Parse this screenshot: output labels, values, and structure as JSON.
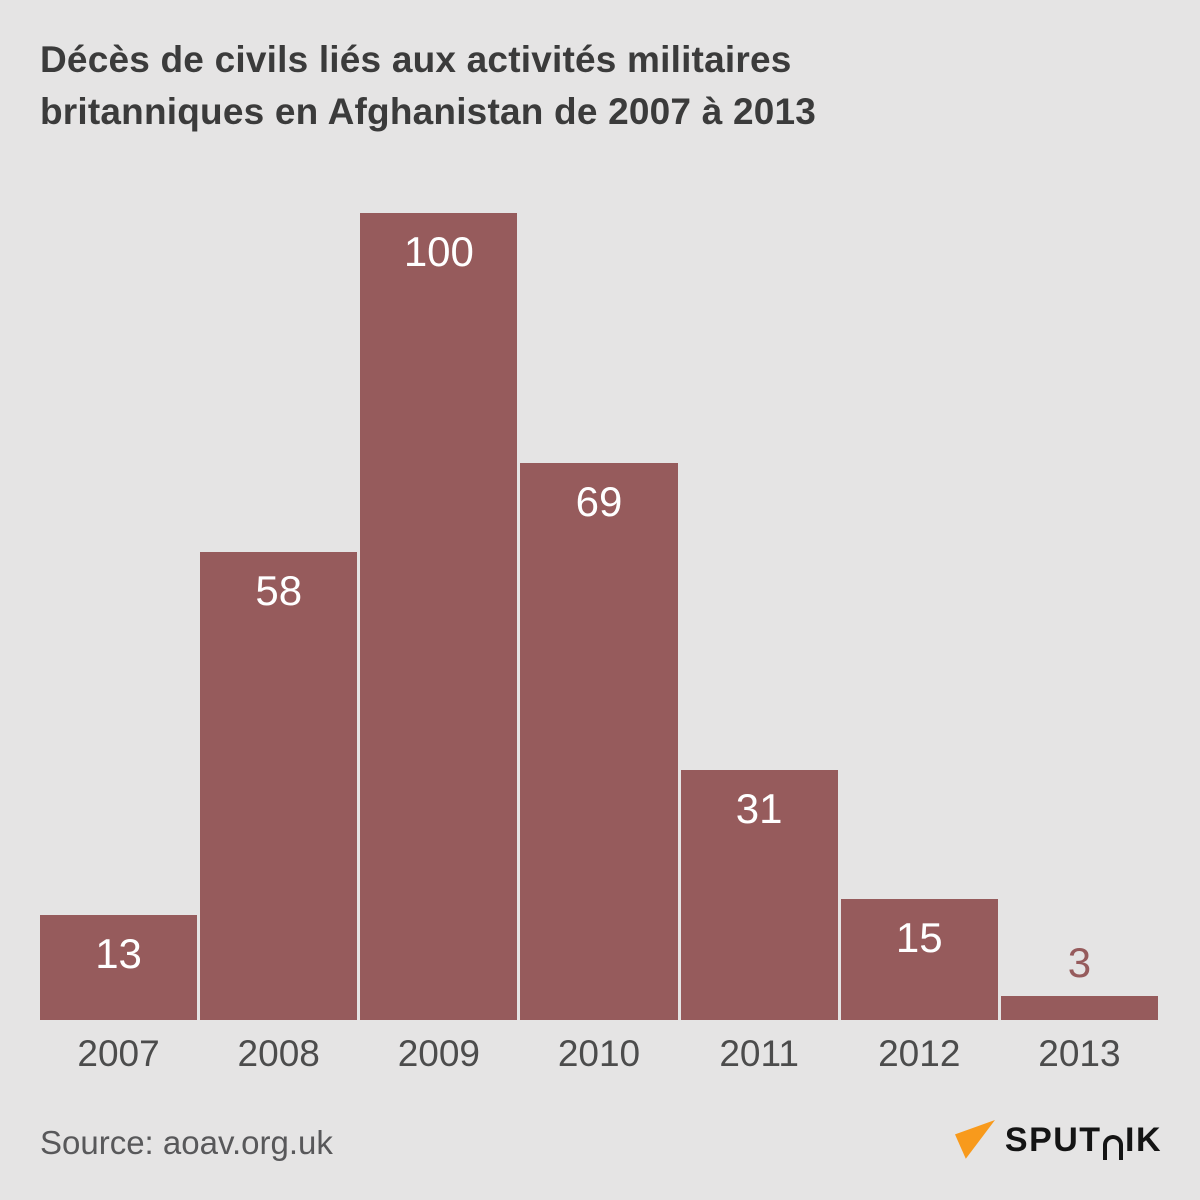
{
  "page": {
    "background": "#e5e4e4"
  },
  "header": {
    "title_lines": [
      "Décès de civils liés aux activités militaires",
      "britanniques en Afghanistan de 2007 à 2013"
    ],
    "title_color": "#3b3b3b"
  },
  "chart_data": {
    "type": "bar",
    "title": "Décès de civils liés aux activités militaires britanniques en Afghanistan de 2007 à 2013",
    "categories": [
      "2007",
      "2008",
      "2009",
      "2010",
      "2011",
      "2012",
      "2013"
    ],
    "values": [
      13,
      58,
      100,
      69,
      31,
      15,
      3
    ],
    "xlabel": "",
    "ylabel": "",
    "ylim": [
      0,
      100
    ],
    "grid": false,
    "legend": "none",
    "value_labels_shown": true,
    "bar_color": "#965b5c",
    "value_label_color_inside": "#ffffff",
    "value_label_color_outside": "#965b5c",
    "tick_label_color": "#4c4c4c"
  },
  "footer": {
    "source": "Source: aoav.org.uk",
    "source_color": "#58585a",
    "logo": {
      "brand": "SPUTNIK",
      "display_parts": [
        "SPUT",
        "IK"
      ],
      "arrow_color": "#f89a1c",
      "text_color": "#141414"
    }
  }
}
